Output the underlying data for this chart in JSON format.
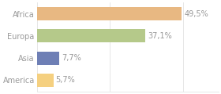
{
  "categories": [
    "Africa",
    "Europa",
    "Asia",
    "America"
  ],
  "values": [
    49.5,
    37.1,
    7.7,
    5.7
  ],
  "labels": [
    "49,5%",
    "37,1%",
    "7,7%",
    "5,7%"
  ],
  "bar_colors": [
    "#e8b882",
    "#b5c98a",
    "#6e7fb5",
    "#f5d080"
  ],
  "xlim": [
    0,
    62
  ],
  "background_color": "#ffffff",
  "text_color": "#999999",
  "bar_height": 0.6,
  "label_fontsize": 7.0,
  "tick_fontsize": 7.0,
  "grid_color": "#dddddd",
  "grid_xticks": [
    0,
    25,
    50
  ]
}
